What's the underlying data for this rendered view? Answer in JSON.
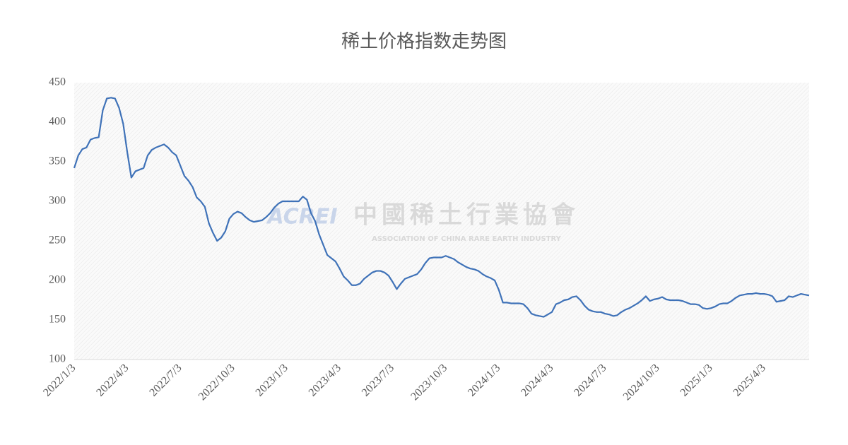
{
  "chart_data": {
    "type": "line",
    "title": "稀土价格指数走势图",
    "watermark": {
      "logo": "ACREI",
      "name": "中國稀土行業協會",
      "subtitle": "ASSOCIATION OF CHINA RARE EARTH INDUSTRY"
    },
    "color": "#3f72b8",
    "categories": [
      "2022/1/3",
      null,
      null,
      null,
      null,
      null,
      null,
      null,
      null,
      null,
      null,
      null,
      null,
      "2022/4/3",
      null,
      null,
      null,
      null,
      null,
      null,
      null,
      null,
      null,
      null,
      null,
      null,
      "2022/7/3",
      null,
      null,
      null,
      null,
      null,
      null,
      null,
      null,
      null,
      null,
      null,
      null,
      "2022/10/3",
      null,
      null,
      null,
      null,
      null,
      null,
      null,
      null,
      null,
      null,
      null,
      null,
      "2023/1/3",
      null,
      null,
      null,
      null,
      null,
      null,
      null,
      null,
      null,
      null,
      null,
      null,
      "2023/4/3",
      null,
      null,
      null,
      null,
      null,
      null,
      null,
      null,
      null,
      null,
      null,
      null,
      "2023/7/3",
      null,
      null,
      null,
      null,
      null,
      null,
      null,
      null,
      null,
      null,
      null,
      null,
      "2023/10/3",
      null,
      null,
      null,
      null,
      null,
      null,
      null,
      null,
      null,
      null,
      null,
      null,
      "2024/1/3",
      null,
      null,
      null,
      null,
      null,
      null,
      null,
      null,
      null,
      null,
      null,
      null,
      "2024/4/3",
      null,
      null,
      null,
      null,
      null,
      null,
      null,
      null,
      null,
      null,
      null,
      null,
      "2024/7/3",
      null,
      null,
      null,
      null,
      null,
      null,
      null,
      null,
      null,
      null,
      null,
      null,
      "2024/10/3",
      null,
      null,
      null,
      null,
      null,
      null,
      null,
      null,
      null,
      null,
      null,
      null,
      "2025/1/3",
      null,
      null,
      null,
      null,
      null,
      null,
      null,
      null,
      null,
      null,
      null,
      null,
      "2025/4/3",
      null,
      null,
      null,
      null,
      null,
      null,
      null,
      null,
      null,
      null,
      null
    ],
    "values": [
      342,
      358,
      366,
      368,
      378,
      380,
      381,
      415,
      430,
      431,
      430,
      418,
      398,
      362,
      330,
      338,
      340,
      342,
      358,
      365,
      368,
      370,
      372,
      368,
      362,
      358,
      345,
      332,
      326,
      318,
      305,
      300,
      293,
      272,
      260,
      250,
      254,
      262,
      278,
      284,
      287,
      285,
      280,
      276,
      274,
      275,
      276,
      280,
      285,
      292,
      297,
      300,
      300,
      300,
      300,
      300,
      306,
      302,
      285,
      275,
      258,
      245,
      232,
      228,
      224,
      215,
      205,
      200,
      194,
      194,
      196,
      202,
      206,
      210,
      212,
      212,
      210,
      206,
      198,
      189,
      196,
      202,
      204,
      206,
      208,
      214,
      222,
      228,
      229,
      229,
      229,
      231,
      229,
      227,
      223,
      220,
      217,
      215,
      214,
      212,
      208,
      205,
      203,
      200,
      188,
      172,
      172,
      171,
      171,
      171,
      170,
      165,
      158,
      156,
      155,
      154,
      157,
      160,
      170,
      172,
      175,
      176,
      179,
      180,
      175,
      168,
      163,
      161,
      160,
      160,
      158,
      157,
      155,
      156,
      160,
      163,
      165,
      168,
      171,
      175,
      180,
      174,
      176,
      177,
      179,
      176,
      175,
      175,
      175,
      174,
      172,
      170,
      170,
      169,
      165,
      164,
      165,
      167,
      170,
      171,
      171,
      174,
      178,
      181,
      182,
      183,
      183,
      184,
      183,
      183,
      182,
      180,
      173,
      174,
      175,
      180,
      179,
      181,
      183,
      182,
      181
    ],
    "ylim": [
      100,
      450
    ],
    "yticks": [
      100,
      150,
      200,
      250,
      300,
      350,
      400,
      450
    ],
    "grid": false
  }
}
